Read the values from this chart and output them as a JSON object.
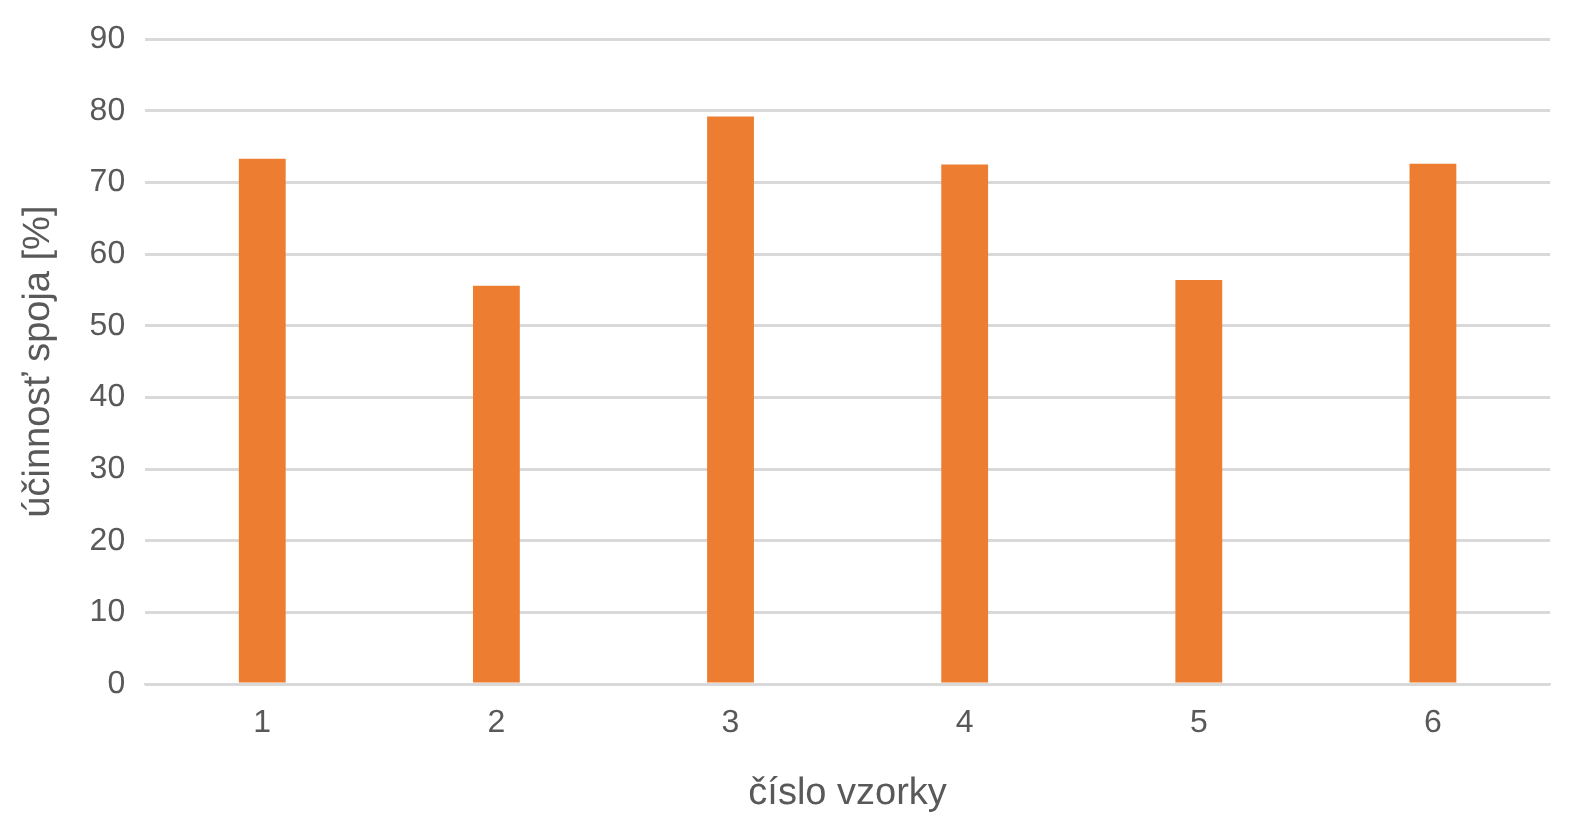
{
  "chart_data": {
    "type": "bar",
    "xlabel": "číslo vzorky",
    "ylabel": "účinnosť spoja [%]",
    "categories": [
      "1",
      "2",
      "3",
      "4",
      "5",
      "6"
    ],
    "values": [
      73.3,
      55.6,
      79.2,
      72.5,
      56.4,
      72.6
    ],
    "color": "#ed7d31",
    "ylim": [
      0,
      90
    ],
    "yticks": [
      0,
      10,
      20,
      30,
      40,
      50,
      60,
      70,
      80,
      90
    ],
    "grid": "y",
    "legend": false
  }
}
